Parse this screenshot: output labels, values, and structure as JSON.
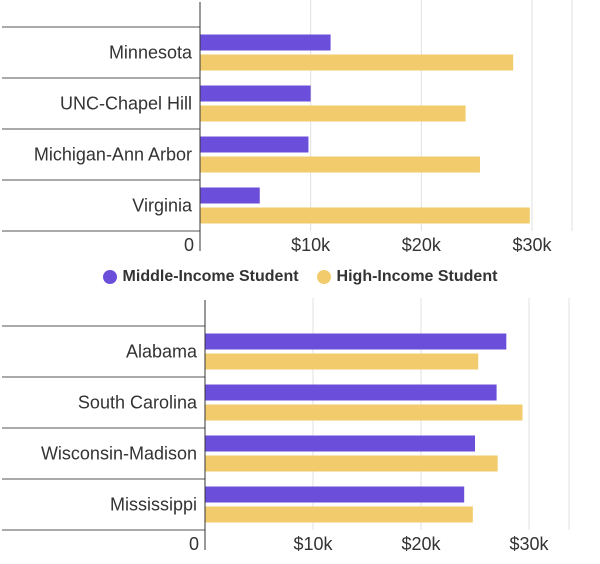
{
  "colors": {
    "middle": "#6B4FDB",
    "high": "#F2CB6C",
    "grid": "#e0e0e0",
    "axis": "#333333",
    "separator": "#555555"
  },
  "legend": [
    {
      "name": "Middle-Income Student",
      "color": "#6B4FDB"
    },
    {
      "name": "High-Income Student",
      "color": "#F2CB6C"
    }
  ],
  "chart_data": [
    {
      "type": "bar",
      "orientation": "horizontal",
      "categories": [
        "Minnesota",
        "UNC-Chapel Hill",
        "Michigan-Ann Arbor",
        "Virginia"
      ],
      "series": [
        {
          "name": "Middle-Income Student",
          "values": [
            11800,
            10000,
            9800,
            5400
          ]
        },
        {
          "name": "High-Income Student",
          "values": [
            28300,
            24000,
            25300,
            29800
          ]
        }
      ],
      "xlim": [
        0,
        30000
      ],
      "ticks": [
        {
          "value": 0,
          "label": "0"
        },
        {
          "value": 10000,
          "label": "$10k"
        },
        {
          "value": 20000,
          "label": "$20k"
        },
        {
          "value": 30000,
          "label": "$30k"
        }
      ],
      "grid": true,
      "legend_position": "bottom"
    },
    {
      "type": "bar",
      "orientation": "horizontal",
      "categories": [
        "Alabama",
        "South Carolina",
        "Wisconsin-Madison",
        "Mississippi"
      ],
      "series": [
        {
          "name": "Middle-Income Student",
          "values": [
            27900,
            27000,
            25000,
            24000
          ]
        },
        {
          "name": "High-Income Student",
          "values": [
            25300,
            29400,
            27100,
            24800
          ]
        }
      ],
      "xlim": [
        0,
        30000
      ],
      "ticks": [
        {
          "value": 0,
          "label": "0"
        },
        {
          "value": 10000,
          "label": "$10k"
        },
        {
          "value": 20000,
          "label": "$20k"
        },
        {
          "value": 30000,
          "label": "$30k"
        }
      ],
      "grid": true
    }
  ]
}
